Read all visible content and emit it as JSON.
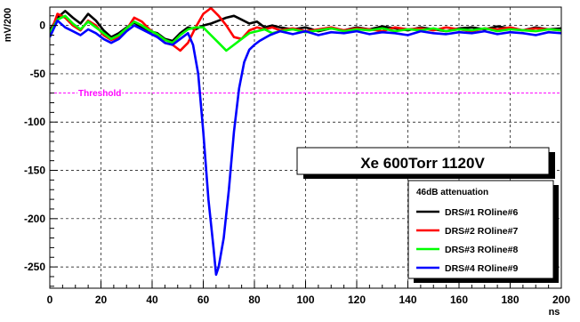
{
  "chart_data": {
    "type": "line",
    "title": "Xe 600Torr 1120V",
    "xlabel": "ns",
    "ylabel": "mV/200",
    "xlim": [
      0,
      200
    ],
    "ylim": [
      -272,
      19
    ],
    "xticks": [
      0,
      20,
      40,
      60,
      80,
      100,
      120,
      140,
      160,
      180,
      200
    ],
    "yticks": [
      0,
      -50,
      -100,
      -150,
      -200,
      -250
    ],
    "grid": true,
    "legend_title": "46dB attenuation",
    "legend_position": "bottom-right",
    "threshold": {
      "label": "Threshold",
      "value": -70,
      "color": "#ff00ff"
    },
    "series": [
      {
        "name": "DRS#1 ROline#6",
        "color": "#000000",
        "x": [
          0,
          3,
          6,
          9,
          12,
          15,
          18,
          21,
          24,
          27,
          30,
          33,
          36,
          39,
          42,
          45,
          48,
          51,
          54,
          57,
          60,
          63,
          66,
          69,
          72,
          75,
          78,
          81,
          84,
          87,
          90,
          95,
          100,
          105,
          110,
          115,
          120,
          125,
          130,
          135,
          140,
          145,
          150,
          155,
          160,
          165,
          170,
          175,
          180,
          185,
          190,
          195,
          200
        ],
        "y": [
          -5,
          8,
          15,
          8,
          2,
          12,
          5,
          -5,
          -12,
          -8,
          -2,
          3,
          -2,
          -6,
          -8,
          -14,
          -16,
          -8,
          -2,
          -4,
          0,
          2,
          5,
          8,
          10,
          6,
          2,
          4,
          -2,
          0,
          -2,
          -4,
          -2,
          -6,
          -3,
          -5,
          -2,
          -4,
          -1,
          -3,
          -5,
          -2,
          -4,
          -6,
          -3,
          -2,
          -4,
          -1,
          -3,
          -5,
          -2,
          -4,
          -3
        ]
      },
      {
        "name": "DRS#2 ROline#7",
        "color": "#ff0000",
        "x": [
          0,
          3,
          6,
          9,
          12,
          15,
          18,
          21,
          24,
          27,
          30,
          33,
          36,
          39,
          42,
          45,
          48,
          51,
          54,
          57,
          60,
          63,
          66,
          69,
          72,
          75,
          78,
          81,
          84,
          87,
          90,
          95,
          100,
          105,
          110,
          115,
          120,
          125,
          130,
          135,
          140,
          145,
          150,
          155,
          160,
          165,
          170,
          175,
          180,
          185,
          190,
          195,
          200
        ],
        "y": [
          -10,
          12,
          8,
          0,
          -5,
          5,
          0,
          -10,
          -15,
          -12,
          -4,
          8,
          4,
          -4,
          -10,
          -18,
          -20,
          -26,
          -18,
          -2,
          12,
          18,
          10,
          0,
          -12,
          -14,
          -5,
          -2,
          -4,
          -2,
          -5,
          -3,
          -6,
          -4,
          -2,
          -5,
          -3,
          -4,
          -6,
          -2,
          -4,
          -3,
          -5,
          -2,
          -4,
          -6,
          -3,
          -4,
          -2,
          -5,
          -3,
          -4,
          -5
        ]
      },
      {
        "name": "DRS#3 ROline#8",
        "color": "#00ff00",
        "x": [
          0,
          3,
          6,
          9,
          12,
          15,
          18,
          21,
          24,
          27,
          30,
          33,
          36,
          39,
          42,
          45,
          48,
          51,
          54,
          57,
          60,
          63,
          66,
          69,
          72,
          75,
          78,
          81,
          84,
          87,
          90,
          95,
          100,
          105,
          110,
          115,
          120,
          125,
          130,
          135,
          140,
          145,
          150,
          155,
          160,
          165,
          170,
          175,
          180,
          185,
          190,
          195,
          200
        ],
        "y": [
          -8,
          6,
          10,
          2,
          -4,
          4,
          -2,
          -8,
          -14,
          -10,
          -3,
          4,
          0,
          -5,
          -9,
          -15,
          -18,
          -10,
          -4,
          -2,
          -2,
          -10,
          -18,
          -26,
          -20,
          -14,
          -8,
          -6,
          -4,
          -8,
          -6,
          -4,
          -7,
          -5,
          -3,
          -6,
          -4,
          -5,
          -3,
          -6,
          -4,
          -5,
          -3,
          -6,
          -4,
          -5,
          -3,
          -6,
          -4,
          -5,
          -6,
          -4,
          -5
        ]
      },
      {
        "name": "DRS#4 ROline#9",
        "color": "#0000ff",
        "x": [
          0,
          3,
          6,
          9,
          12,
          15,
          18,
          21,
          24,
          27,
          30,
          33,
          36,
          39,
          42,
          45,
          48,
          51,
          54,
          56,
          58,
          60,
          62,
          64,
          65,
          66,
          68,
          70,
          72,
          74,
          76,
          78,
          80,
          82,
          84,
          86,
          88,
          90,
          95,
          100,
          105,
          110,
          115,
          120,
          125,
          130,
          135,
          140,
          145,
          150,
          155,
          160,
          165,
          170,
          175,
          180,
          185,
          190,
          195,
          200
        ],
        "y": [
          -12,
          5,
          -2,
          -6,
          -10,
          -4,
          -8,
          -14,
          -18,
          -14,
          -6,
          0,
          -4,
          -8,
          -12,
          -18,
          -20,
          -14,
          -8,
          -20,
          -50,
          -110,
          -180,
          -230,
          -258,
          -250,
          -220,
          -170,
          -110,
          -65,
          -38,
          -25,
          -20,
          -16,
          -13,
          -10,
          -8,
          -6,
          -9,
          -6,
          -10,
          -7,
          -8,
          -6,
          -9,
          -7,
          -8,
          -10,
          -6,
          -8,
          -9,
          -7,
          -8,
          -6,
          -9,
          -7,
          -8,
          -10,
          -7,
          -8
        ]
      }
    ]
  }
}
